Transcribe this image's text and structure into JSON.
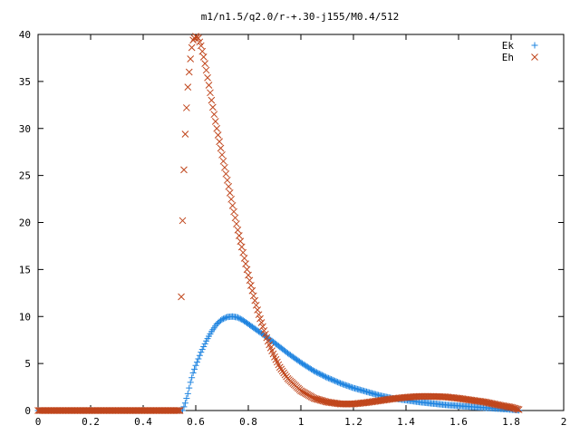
{
  "chart_data": {
    "type": "scatter",
    "title": "m1/n1.5/q2.0/r-+.30-j155/M0.4/512",
    "xlabel": "",
    "ylabel": "",
    "xlim": [
      0,
      2
    ],
    "ylim": [
      0,
      40
    ],
    "x_ticks": [
      "0",
      "0.2",
      "0.4",
      "0.6",
      "0.8",
      "1",
      "1.2",
      "1.4",
      "1.6",
      "1.8",
      "2"
    ],
    "y_ticks": [
      "0",
      "5",
      "10",
      "15",
      "20",
      "25",
      "30",
      "35",
      "40"
    ],
    "grid": false,
    "legend_position": "top-right",
    "series": [
      {
        "name": "Ek",
        "marker": "plus",
        "color": "#1f84e0",
        "points": [
          [
            0.0,
            0
          ],
          [
            0.1,
            0
          ],
          [
            0.2,
            0
          ],
          [
            0.3,
            0
          ],
          [
            0.4,
            0
          ],
          [
            0.5,
            0
          ],
          [
            0.55,
            0
          ],
          [
            0.56,
            0.8
          ],
          [
            0.57,
            1.8
          ],
          [
            0.58,
            3.0
          ],
          [
            0.59,
            4.0
          ],
          [
            0.6,
            4.8
          ],
          [
            0.62,
            6.2
          ],
          [
            0.64,
            7.4
          ],
          [
            0.66,
            8.4
          ],
          [
            0.68,
            9.2
          ],
          [
            0.7,
            9.7
          ],
          [
            0.72,
            9.95
          ],
          [
            0.74,
            10.0
          ],
          [
            0.76,
            9.9
          ],
          [
            0.78,
            9.6
          ],
          [
            0.8,
            9.2
          ],
          [
            0.85,
            8.2
          ],
          [
            0.9,
            7.2
          ],
          [
            0.95,
            6.1
          ],
          [
            1.0,
            5.1
          ],
          [
            1.05,
            4.2
          ],
          [
            1.1,
            3.5
          ],
          [
            1.15,
            2.9
          ],
          [
            1.2,
            2.4
          ],
          [
            1.25,
            2.0
          ],
          [
            1.3,
            1.6
          ],
          [
            1.35,
            1.3
          ],
          [
            1.4,
            1.1
          ],
          [
            1.45,
            0.9
          ],
          [
            1.5,
            0.75
          ],
          [
            1.55,
            0.6
          ],
          [
            1.6,
            0.5
          ],
          [
            1.65,
            0.4
          ],
          [
            1.7,
            0.3
          ],
          [
            1.75,
            0.2
          ],
          [
            1.8,
            0.1
          ],
          [
            1.83,
            0.02
          ]
        ]
      },
      {
        "name": "Eh",
        "marker": "cross",
        "color": "#c0461c",
        "points": [
          [
            0.0,
            0
          ],
          [
            0.1,
            0
          ],
          [
            0.2,
            0
          ],
          [
            0.3,
            0
          ],
          [
            0.4,
            0
          ],
          [
            0.5,
            0
          ],
          [
            0.54,
            0
          ],
          [
            0.545,
            12.1
          ],
          [
            0.55,
            20.2
          ],
          [
            0.555,
            25.6
          ],
          [
            0.56,
            29.4
          ],
          [
            0.565,
            32.2
          ],
          [
            0.57,
            34.4
          ],
          [
            0.575,
            36.0
          ],
          [
            0.58,
            37.4
          ],
          [
            0.585,
            38.6
          ],
          [
            0.59,
            39.4
          ],
          [
            0.6,
            39.8
          ],
          [
            0.61,
            39.6
          ],
          [
            0.62,
            38.8
          ],
          [
            0.63,
            37.6
          ],
          [
            0.64,
            36.2
          ],
          [
            0.65,
            34.6
          ],
          [
            0.66,
            33.0
          ],
          [
            0.68,
            30.0
          ],
          [
            0.7,
            27.2
          ],
          [
            0.72,
            24.5
          ],
          [
            0.74,
            21.8
          ],
          [
            0.76,
            19.2
          ],
          [
            0.78,
            16.8
          ],
          [
            0.8,
            14.4
          ],
          [
            0.82,
            12.2
          ],
          [
            0.84,
            10.2
          ],
          [
            0.86,
            8.5
          ],
          [
            0.88,
            7.0
          ],
          [
            0.9,
            5.7
          ],
          [
            0.92,
            4.6
          ],
          [
            0.95,
            3.4
          ],
          [
            1.0,
            2.1
          ],
          [
            1.05,
            1.3
          ],
          [
            1.1,
            0.9
          ],
          [
            1.15,
            0.7
          ],
          [
            1.2,
            0.7
          ],
          [
            1.25,
            0.85
          ],
          [
            1.3,
            1.05
          ],
          [
            1.35,
            1.25
          ],
          [
            1.4,
            1.4
          ],
          [
            1.45,
            1.5
          ],
          [
            1.5,
            1.5
          ],
          [
            1.55,
            1.45
          ],
          [
            1.6,
            1.3
          ],
          [
            1.65,
            1.1
          ],
          [
            1.7,
            0.9
          ],
          [
            1.75,
            0.6
          ],
          [
            1.8,
            0.35
          ],
          [
            1.83,
            0.1
          ]
        ]
      }
    ]
  }
}
